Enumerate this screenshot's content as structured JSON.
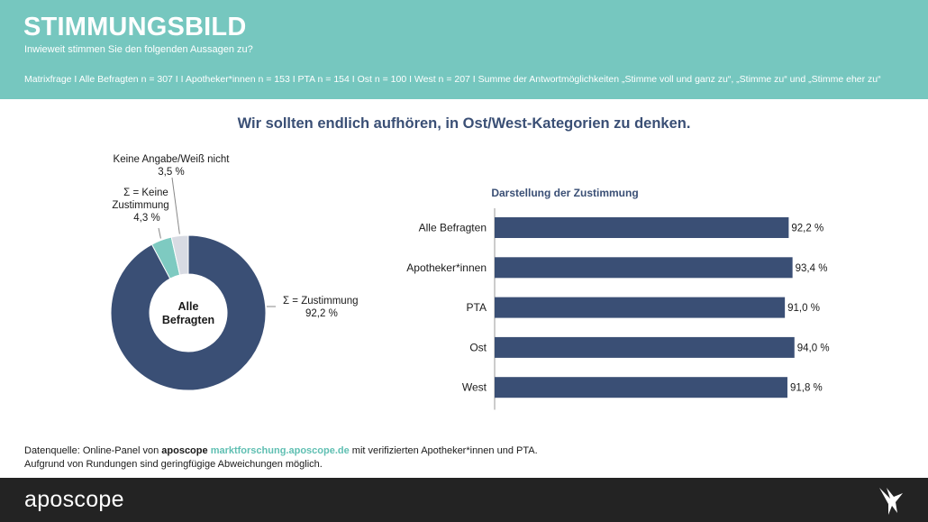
{
  "header": {
    "title": "STIMMUNGSBILD",
    "subtitle": "Inwieweit stimmen Sie den folgenden Aussagen zu?",
    "note": "Matrixfrage I Alle Befragten n = 307 I I Apotheker*innen n = 153 I PTA n = 154 I Ost n = 100 I West n = 207 I Summe der Antwortmöglichkeiten „Stimme voll und ganz zu“, „Stimme zu“ und „Stimme eher zu“"
  },
  "question": "Wir sollten endlich aufhören, in Ost/West-Kategorien zu denken.",
  "footer": {
    "source_prefix": "Datenquelle: Online-Panel von ",
    "brand": "aposcope",
    "link": "marktforschung.aposcope.de",
    "source_suffix": " mit verifizierten Apotheker*innen und PTA.",
    "rounding_note": "Aufgrund von Rundungen sind geringfügige Abweichungen möglich."
  },
  "logo": {
    "text": "aposcope",
    "icon": "bird-icon"
  },
  "colors": {
    "header_bg": "#76c7bf",
    "bar": "#3a4f75",
    "teal": "#7ecac1",
    "light_gray": "#d8dbe3",
    "bottom_bar": "#232323"
  },
  "chart_data": [
    {
      "type": "pie",
      "center_label": [
        "Alle",
        "Befragten"
      ],
      "slices": [
        {
          "label": "Σ = Zustimmung",
          "value": 92.2,
          "value_label": "92,2 %",
          "color": "#3a4f75",
          "label_lines": [
            "Σ = Zustimmung"
          ]
        },
        {
          "label": "Σ = Keine Zustimmung",
          "value": 4.3,
          "value_label": "4,3 %",
          "color": "#7ecac1",
          "label_lines": [
            "Σ = Keine",
            "Zustimmung"
          ]
        },
        {
          "label": "Keine Angabe/Weiß nicht",
          "value": 3.5,
          "value_label": "3,5 %",
          "color": "#d8dbe3",
          "label_lines": [
            "Keine Angabe/Weiß nicht"
          ]
        }
      ]
    },
    {
      "type": "bar",
      "orientation": "horizontal",
      "title": "Darstellung der Zustimmung",
      "categories": [
        "Alle Befragten",
        "Apotheker*innen",
        "PTA",
        "Ost",
        "West"
      ],
      "values": [
        92.2,
        93.4,
        91.0,
        94.0,
        91.8
      ],
      "value_labels": [
        "92,2 %",
        "93,4 %",
        "91,0 %",
        "94,0 %",
        "91,8 %"
      ],
      "xlim": [
        0,
        100
      ],
      "grid": false,
      "legend": "none"
    }
  ]
}
